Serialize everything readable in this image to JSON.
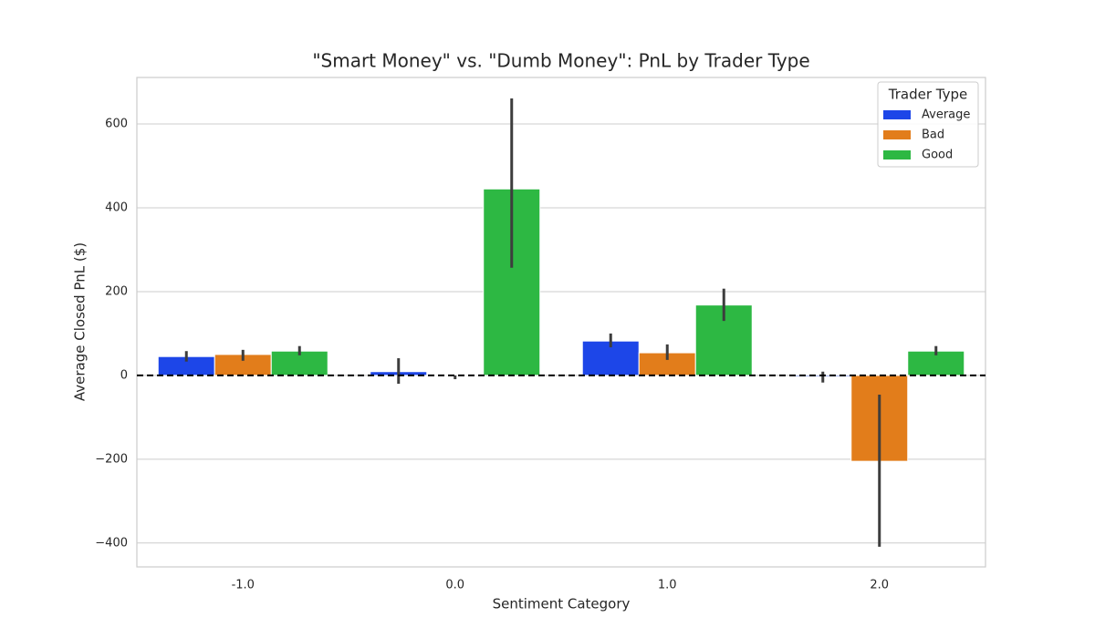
{
  "chart_data": {
    "type": "bar",
    "title": "\"Smart Money\" vs. \"Dumb Money\": PnL by Trader Type",
    "xlabel": "Sentiment Category",
    "ylabel": "Average Closed PnL ($)",
    "categories": [
      "-1.0",
      "0.0",
      "1.0",
      "2.0"
    ],
    "series": [
      {
        "name": "Average",
        "color": "#1d46e8",
        "values": [
          45,
          9,
          82,
          -3
        ],
        "error_low": [
          33,
          -20,
          67,
          -17
        ],
        "error_high": [
          58,
          41,
          100,
          9
        ]
      },
      {
        "name": "Bad",
        "color": "#e27d1b",
        "values": [
          50,
          -2,
          54,
          -205
        ],
        "error_low": [
          35,
          -9,
          37,
          -409
        ],
        "error_high": [
          61,
          0,
          74,
          -46
        ]
      },
      {
        "name": "Good",
        "color": "#2db843",
        "values": [
          58,
          445,
          168,
          58
        ],
        "error_low": [
          48,
          257,
          130,
          48
        ],
        "error_high": [
          70,
          661,
          207,
          70
        ]
      }
    ],
    "ylim": [
      -457,
      711
    ],
    "yticks": [
      {
        "value": -400,
        "label": "−400"
      },
      {
        "value": -200,
        "label": "−200"
      },
      0,
      200,
      400,
      600
    ],
    "hline": 0,
    "grid": true,
    "legend": {
      "title": "Trader Type",
      "position": "upper right"
    }
  }
}
